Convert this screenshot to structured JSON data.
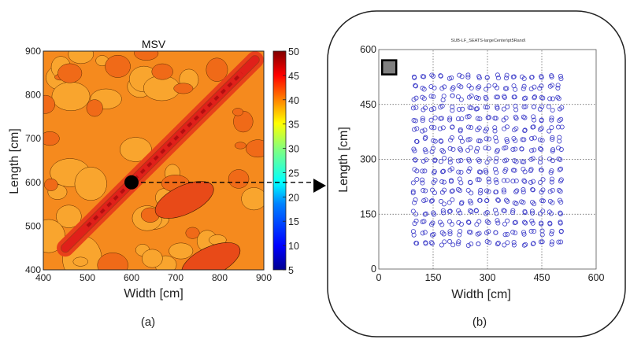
{
  "figure": {
    "panel_a_label": "(a)",
    "panel_b_label": "(b)",
    "connector": "dashed arrow from marked point at (600,600) to panel (b)"
  },
  "chart_data": [
    {
      "type": "heatmap",
      "subtype": "filled-contour",
      "title": "MSV",
      "xlabel": "Width [cm]",
      "ylabel": "Length [cm]",
      "xlim": [
        400,
        900
      ],
      "ylim": [
        400,
        900
      ],
      "xticks": [
        400,
        500,
        600,
        700,
        800,
        900
      ],
      "yticks": [
        400,
        500,
        600,
        700,
        800,
        900
      ],
      "xtick_labels": [
        "400",
        "500",
        "600",
        "700",
        "800",
        "900"
      ],
      "ytick_labels": [
        "400",
        "500",
        "600",
        "700",
        "800",
        "900"
      ],
      "colorbar": {
        "range": [
          5,
          50
        ],
        "ticks": [
          5,
          10,
          15,
          20,
          25,
          30,
          35,
          40,
          45,
          50
        ],
        "tick_labels": [
          "5",
          "10",
          "15",
          "20",
          "25",
          "30",
          "35",
          "40",
          "45",
          "50"
        ],
        "colormap": "jet",
        "colors": [
          "#00008f",
          "#0000ff",
          "#0080ff",
          "#00ffff",
          "#80ff80",
          "#ffff00",
          "#ff8000",
          "#ff0000",
          "#800000"
        ]
      },
      "value_range_observed": [
        35,
        48
      ],
      "features": [
        {
          "name": "diagonal ridge",
          "description": "high MSV band along Width = Length",
          "from": [
            450,
            450
          ],
          "to": [
            880,
            880
          ],
          "value": 46
        },
        {
          "name": "lower-right high region",
          "center": [
            780,
            420
          ],
          "value": 43
        },
        {
          "name": "off-diagonal band",
          "center": [
            720,
            560
          ],
          "value": 42
        }
      ],
      "marker": {
        "x": 600,
        "y": 600,
        "shape": "filled-circle",
        "color": "#000000"
      },
      "grid": false
    },
    {
      "type": "scatter",
      "title": "SUB-LF_SEATS-largeCenter\\pt5Rand\\",
      "xlabel": "Width [cm]",
      "ylabel": "Length [cm]",
      "xlim": [
        0,
        600
      ],
      "ylim": [
        0,
        600
      ],
      "xticks": [
        0,
        150,
        300,
        450,
        600
      ],
      "yticks": [
        0,
        150,
        300,
        450,
        600
      ],
      "xtick_labels": [
        "0",
        "150",
        "300",
        "450",
        "600"
      ],
      "ytick_labels": [
        "0",
        "150",
        "300",
        "450",
        "600"
      ],
      "grid": true,
      "grid_style": "dotted",
      "marker": "open-circle",
      "marker_color": "#3a3ac8",
      "points_description": "approx. 17x17 jittered grid of receiver positions, each position plotted 2 times with small random offset",
      "grid_x_range": [
        100,
        500
      ],
      "grid_y_range": [
        70,
        525
      ],
      "grid_columns": 17,
      "grid_rows": 17,
      "source_icon": {
        "x": 20,
        "y": 560,
        "shape": "square",
        "fill": "#808080",
        "border": "#000000"
      }
    }
  ]
}
